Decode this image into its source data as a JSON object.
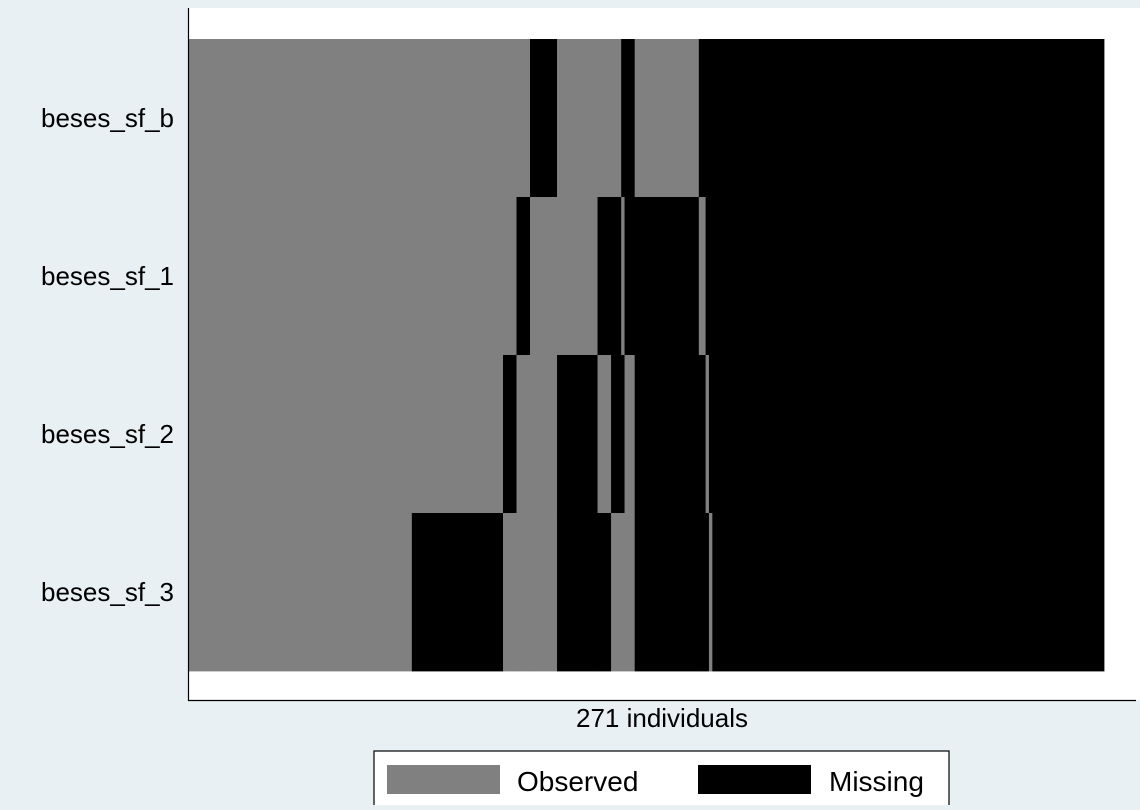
{
  "chart_data": {
    "type": "heatmap",
    "title": "",
    "xlabel": "271 individuals",
    "ylabel": "",
    "n_individuals": 271,
    "variables": [
      "beses_sf_b",
      "beses_sf_1",
      "beses_sf_2",
      "beses_sf_3"
    ],
    "status_codes": {
      "O": "Observed",
      "M": "Missing"
    },
    "colors": {
      "Observed": "#808080",
      "Missing": "#000000",
      "background": "#e8f0f3",
      "plot_area": "#ffffff"
    },
    "legend": {
      "position": "bottom",
      "items": [
        {
          "label": "Observed",
          "color": "#808080"
        },
        {
          "label": "Missing",
          "color": "#000000"
        }
      ]
    },
    "segments": [
      {
        "start": 0,
        "end": 66,
        "status": [
          "O",
          "O",
          "O",
          "O"
        ]
      },
      {
        "start": 66,
        "end": 93,
        "status": [
          "O",
          "O",
          "O",
          "M"
        ]
      },
      {
        "start": 93,
        "end": 97,
        "status": [
          "O",
          "O",
          "M",
          "O"
        ]
      },
      {
        "start": 97,
        "end": 101,
        "status": [
          "O",
          "M",
          "O",
          "O"
        ]
      },
      {
        "start": 101,
        "end": 109,
        "status": [
          "M",
          "O",
          "O",
          "O"
        ]
      },
      {
        "start": 109,
        "end": 121,
        "status": [
          "O",
          "O",
          "M",
          "M"
        ]
      },
      {
        "start": 121,
        "end": 125,
        "status": [
          "O",
          "M",
          "O",
          "M"
        ]
      },
      {
        "start": 125,
        "end": 128,
        "status": [
          "O",
          "M",
          "M",
          "O"
        ]
      },
      {
        "start": 128,
        "end": 129,
        "status": [
          "M",
          "O",
          "M",
          "O"
        ]
      },
      {
        "start": 129,
        "end": 132,
        "status": [
          "M",
          "M",
          "O",
          "O"
        ]
      },
      {
        "start": 132,
        "end": 151,
        "status": [
          "O",
          "M",
          "M",
          "M"
        ]
      },
      {
        "start": 151,
        "end": 153,
        "status": [
          "M",
          "O",
          "M",
          "M"
        ]
      },
      {
        "start": 153,
        "end": 154,
        "status": [
          "M",
          "M",
          "O",
          "M"
        ]
      },
      {
        "start": 154,
        "end": 155,
        "status": [
          "M",
          "M",
          "M",
          "O"
        ]
      },
      {
        "start": 155,
        "end": 271,
        "status": [
          "M",
          "M",
          "M",
          "M"
        ]
      }
    ]
  }
}
